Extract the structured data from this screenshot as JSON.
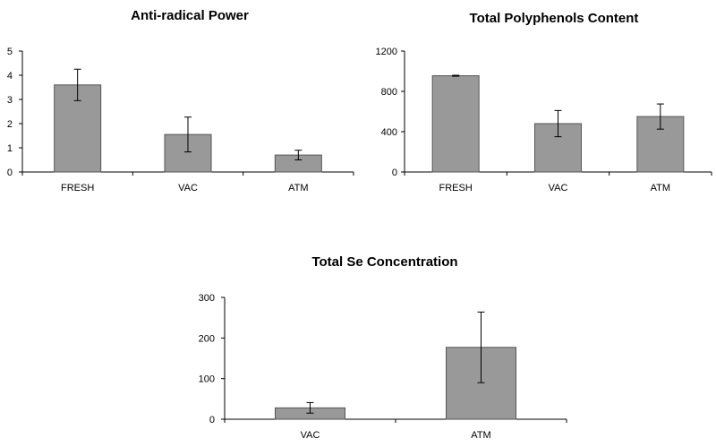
{
  "chart_data": [
    {
      "type": "bar",
      "title": "Anti-radical Power",
      "categories": [
        "FRESH",
        "VAC",
        "ATM"
      ],
      "values": [
        3.6,
        1.55,
        0.7
      ],
      "errors": [
        0.65,
        0.72,
        0.2
      ],
      "ylim": [
        0,
        5
      ],
      "yticks": [
        "0",
        "1",
        "2",
        "3",
        "4",
        "5"
      ],
      "bar_color": "#999999",
      "grid": false
    },
    {
      "type": "bar",
      "title": "Total Polyphenols Content",
      "categories": [
        "FRESH",
        "VAC",
        "ATM"
      ],
      "values": [
        955,
        480,
        550
      ],
      "errors": [
        5,
        130,
        125
      ],
      "ylim": [
        0,
        1200
      ],
      "yticks": [
        "0",
        "400",
        "800",
        "1200"
      ],
      "bar_color": "#999999",
      "grid": false
    },
    {
      "type": "bar",
      "title": "Total Se Concentration",
      "categories": [
        "VAC",
        "ATM"
      ],
      "values": [
        28,
        177
      ],
      "errors": [
        13,
        87
      ],
      "ylim": [
        0,
        300
      ],
      "yticks": [
        "0",
        "100",
        "200",
        "300"
      ],
      "bar_color": "#999999",
      "grid": false
    }
  ]
}
